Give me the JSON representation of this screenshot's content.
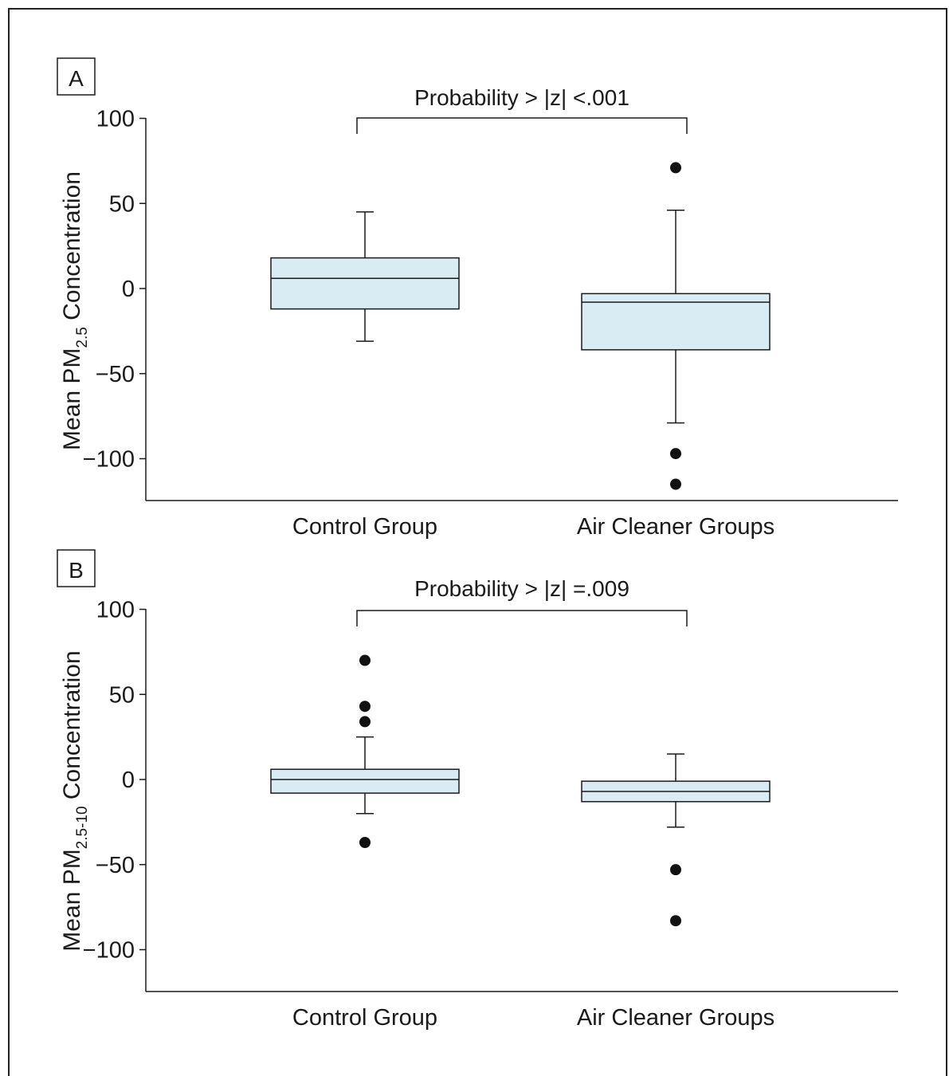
{
  "chart_data": [
    {
      "type": "box",
      "panel": "A",
      "ylabel": {
        "main": "Mean PM",
        "sub": "2.5",
        "rest": " Concentration"
      },
      "yticks": [
        100,
        50,
        0,
        -50,
        -100
      ],
      "ylim": [
        -125,
        100
      ],
      "categories": [
        "Control Group",
        "Air Cleaner Groups"
      ],
      "boxes": [
        {
          "whisker_low": -31,
          "q1": -12,
          "median": 6,
          "q3": 18,
          "whisker_high": 45,
          "outliers": []
        },
        {
          "whisker_low": -79,
          "q1": -36,
          "median": -8,
          "q3": -3,
          "whisker_high": 46,
          "outliers": [
            71,
            -97,
            -115
          ]
        }
      ],
      "annotation": "Probability > |z| <.001"
    },
    {
      "type": "box",
      "panel": "B",
      "ylabel": {
        "main": "Mean PM",
        "sub": "2.5-10",
        "rest": " Concentration"
      },
      "yticks": [
        100,
        50,
        0,
        -50,
        -100
      ],
      "ylim": [
        -125,
        100
      ],
      "categories": [
        "Control Group",
        "Air Cleaner Groups"
      ],
      "boxes": [
        {
          "whisker_low": -20,
          "q1": -8,
          "median": 0,
          "q3": 6,
          "whisker_high": 25,
          "outliers": [
            70,
            43,
            34,
            -37
          ]
        },
        {
          "whisker_low": -28,
          "q1": -13,
          "median": -7,
          "q3": -1,
          "whisker_high": 15,
          "outliers": [
            -53,
            -83
          ]
        }
      ],
      "annotation": "Probability > |z| =.009"
    }
  ],
  "colors": {
    "box_fill": "#d9ebf3",
    "stroke": "#1a1a1a"
  }
}
